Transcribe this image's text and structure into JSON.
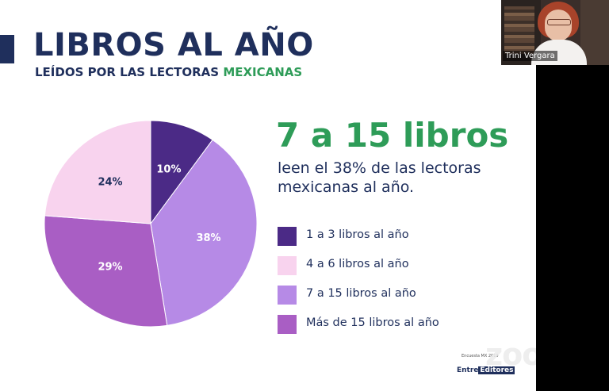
{
  "slide": {
    "title": "LIBROS AL AÑO",
    "subtitle_main": "LEÍDOS POR LAS LECTORAS ",
    "subtitle_accent": "MEXICANAS",
    "highlight": "7 a 15 libros",
    "description": "leen el 38% de las lectoras mexicanas al año.",
    "footer_label": "Encuesta MX 2019",
    "brand_prefix": "Entre",
    "brand_box": "Editores"
  },
  "colors": {
    "navy": "#1f2f5c",
    "green": "#2e9c58"
  },
  "chart_data": {
    "type": "pie",
    "slices": [
      {
        "label": "1 a 3 libros al año",
        "value": 10,
        "value_label": "10%",
        "color": "#4b2a86"
      },
      {
        "label": "7 a 15 libros al año",
        "value": 38,
        "value_label": "38%",
        "color": "#b68ae6"
      },
      {
        "label": "Más de 15 libros al año",
        "value": 29,
        "value_label": "29%",
        "color": "#a95ec4"
      },
      {
        "label": "4 a 6 libros al año",
        "value": 24,
        "value_label": "24%",
        "color": "#f8d3ee"
      }
    ],
    "legend": [
      {
        "label": "1 a 3 libros al año",
        "color": "#4b2a86"
      },
      {
        "label": "4 a 6 libros al año",
        "color": "#f8d3ee"
      },
      {
        "label": "7 a 15 libros al año",
        "color": "#b68ae6"
      },
      {
        "label": "Más de 15 libros al año",
        "color": "#a95ec4"
      }
    ]
  },
  "video": {
    "participant_name": "Trini Vergara"
  },
  "zoom_watermark": "zoom"
}
